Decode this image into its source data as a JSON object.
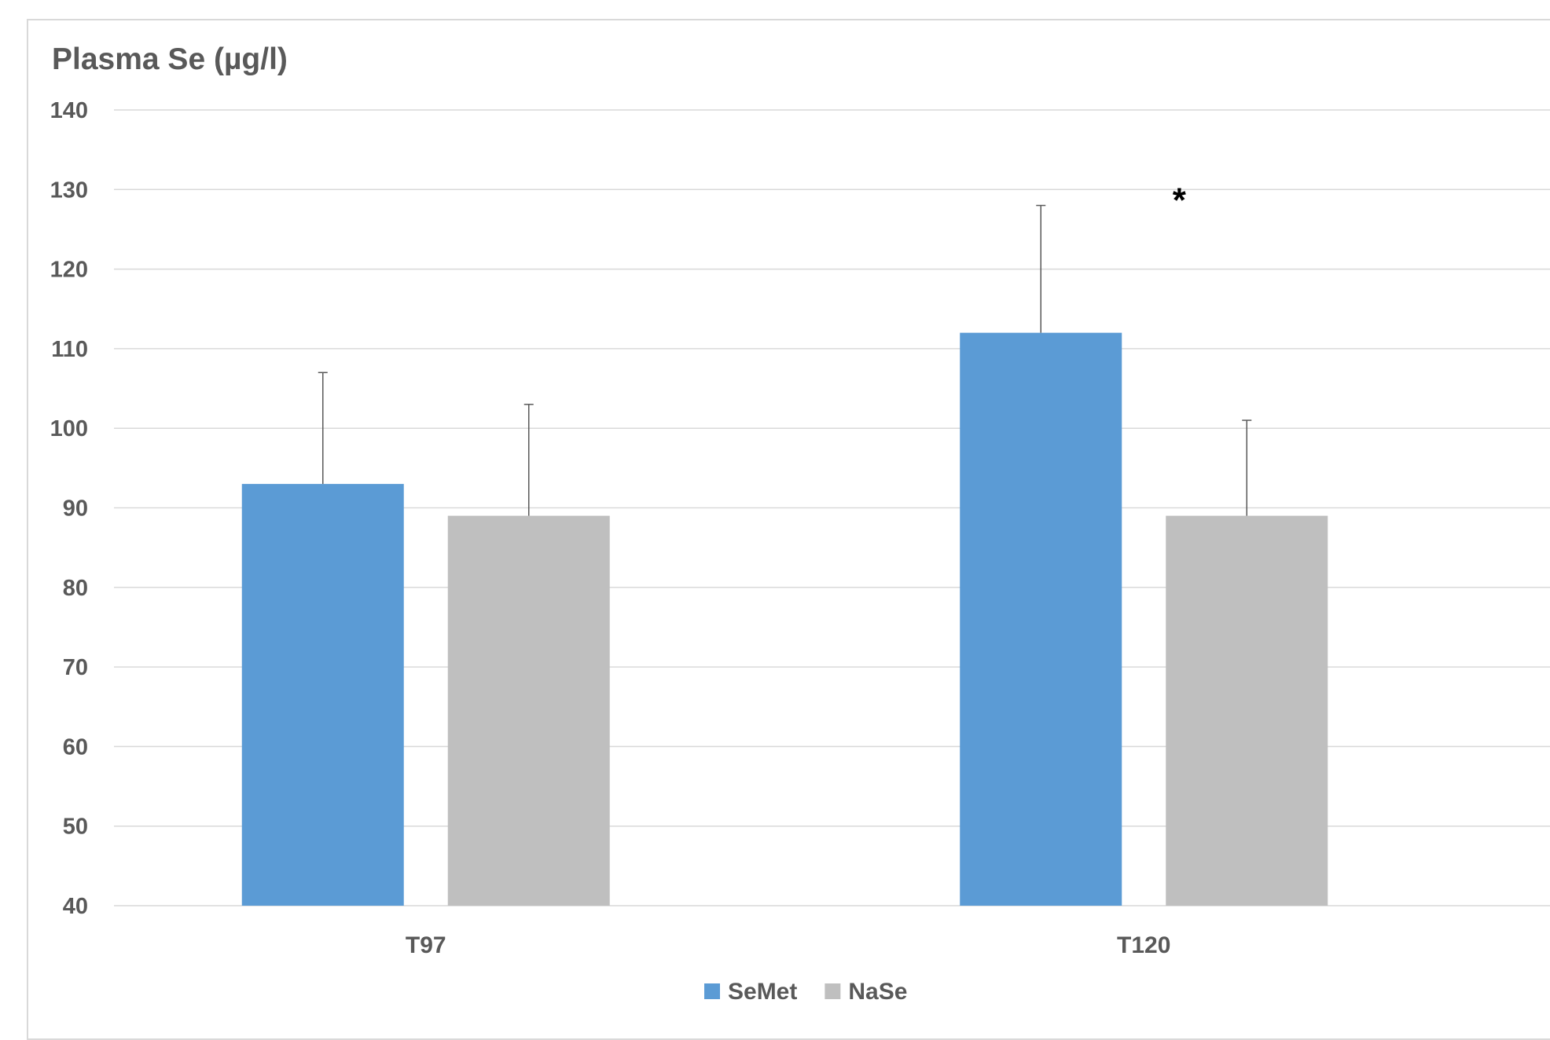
{
  "chart_data": {
    "type": "bar",
    "title": "Plasma Se (µg/l)",
    "xlabel": "",
    "ylabel": "",
    "ylim": [
      40,
      140
    ],
    "ytick_step": 10,
    "grid": true,
    "legend_position": "bottom",
    "categories": [
      "T97",
      "T120"
    ],
    "series": [
      {
        "name": "SeMet",
        "color": "#5B9BD5",
        "values": [
          93,
          112
        ],
        "error_upper": [
          14,
          16
        ]
      },
      {
        "name": "NaSe",
        "color": "#BFBFBF",
        "values": [
          89,
          89
        ],
        "error_upper": [
          14,
          12
        ]
      }
    ],
    "annotations": [
      {
        "text": "*",
        "category": "T120",
        "y": 130
      }
    ]
  }
}
